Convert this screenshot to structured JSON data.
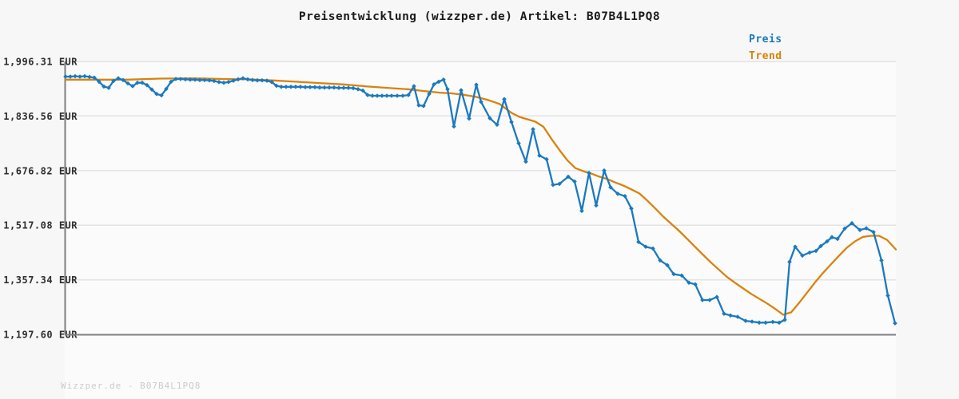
{
  "header": {
    "title": "Preisentwicklung (wizzper.de) Artikel: B07B4L1PQ8"
  },
  "footer": {
    "watermark": "Wizzper.de - B07B4L1PQ8"
  },
  "colors": {
    "background": "#f7f7f7",
    "plot_background": "#fbfbfb",
    "grid": "#e3e3e3",
    "axis": "#7f7f7f",
    "title_text": "#1b1b1b",
    "tick_text": "#2e2e2e",
    "watermark_text": "#cbcbcb",
    "price_blue": "#1b79be",
    "trend_orange": "#d9820e"
  },
  "chart_data": {
    "type": "line",
    "title": "Preisentwicklung (wizzper.de) Artikel: B07B4L1PQ8",
    "grid": true,
    "legend_position": "top-right",
    "x_axis": {
      "tick_labels": []
    },
    "y_axis": {
      "unit": "EUR",
      "tick_labels": [
        "1,996.31 EUR",
        "1,836.56 EUR",
        "1,676.82 EUR",
        "1,517.08 EUR",
        "1,357.34 EUR",
        "1,197.60 EUR"
      ],
      "tick_values": [
        1996.31,
        1836.56,
        1676.82,
        1517.08,
        1357.34,
        1197.6
      ],
      "ylim": [
        1197.6,
        1996.31
      ]
    },
    "series": [
      {
        "name": "Preis",
        "color": "#1b79be",
        "markers": true,
        "x": [
          0.001,
          0.0067,
          0.0125,
          0.0183,
          0.024,
          0.0298,
          0.0356,
          0.0413,
          0.0471,
          0.0529,
          0.0587,
          0.0644,
          0.0702,
          0.076,
          0.0817,
          0.0875,
          0.0933,
          0.099,
          0.1048,
          0.1106,
          0.1163,
          0.1221,
          0.1279,
          0.1337,
          0.1394,
          0.1452,
          0.151,
          0.1567,
          0.1625,
          0.1683,
          0.174,
          0.1798,
          0.1856,
          0.1913,
          0.1971,
          0.2029,
          0.2087,
          0.2144,
          0.2202,
          0.226,
          0.2317,
          0.2375,
          0.2433,
          0.249,
          0.2548,
          0.2606,
          0.2663,
          0.2721,
          0.2779,
          0.2837,
          0.2894,
          0.2952,
          0.301,
          0.3067,
          0.3125,
          0.3183,
          0.324,
          0.3298,
          0.3356,
          0.3413,
          0.3471,
          0.3529,
          0.3587,
          0.3644,
          0.3702,
          0.376,
          0.3817,
          0.3875,
          0.3933,
          0.4,
          0.4067,
          0.4135,
          0.4202,
          0.426,
          0.4317,
          0.4385,
          0.4442,
          0.45,
          0.4558,
          0.4606,
          0.4683,
          0.4769,
          0.4865,
          0.4952,
          0.501,
          0.5115,
          0.5202,
          0.5288,
          0.5375,
          0.5462,
          0.5548,
          0.5635,
          0.5712,
          0.5798,
          0.5875,
          0.5952,
          0.6058,
          0.6135,
          0.6221,
          0.6308,
          0.6394,
          0.649,
          0.6567,
          0.6654,
          0.674,
          0.6817,
          0.6904,
          0.699,
          0.7077,
          0.7163,
          0.725,
          0.7327,
          0.7423,
          0.751,
          0.7587,
          0.7673,
          0.776,
          0.7846,
          0.7933,
          0.801,
          0.8096,
          0.8192,
          0.8269,
          0.8356,
          0.8433,
          0.8519,
          0.8596,
          0.8663,
          0.8721,
          0.8788,
          0.8875,
          0.8962,
          0.9038,
          0.9096,
          0.9173,
          0.9231,
          0.9298,
          0.9385,
          0.9471,
          0.9567,
          0.9644,
          0.9731,
          0.9827,
          0.9904,
          0.999
        ],
        "values": [
          1952,
          1952,
          1953,
          1952,
          1953,
          1951,
          1949,
          1937,
          1923,
          1919,
          1939,
          1947,
          1942,
          1932,
          1924,
          1934,
          1934,
          1927,
          1914,
          1901,
          1897,
          1916,
          1937,
          1945,
          1945,
          1944,
          1943,
          1943,
          1942,
          1942,
          1941,
          1939,
          1936,
          1934,
          1936,
          1940,
          1944,
          1947,
          1944,
          1942,
          1941,
          1941,
          1940,
          1936,
          1925,
          1922,
          1922,
          1922,
          1922,
          1922,
          1921,
          1921,
          1921,
          1920,
          1920,
          1920,
          1920,
          1919,
          1919,
          1919,
          1918,
          1915,
          1911,
          1898,
          1896,
          1896,
          1896,
          1896,
          1896,
          1896,
          1896,
          1898,
          1924,
          1868,
          1866,
          1901,
          1929,
          1937,
          1943,
          1915,
          1806,
          1912,
          1829,
          1928,
          1878,
          1830,
          1811,
          1886,
          1819,
          1757,
          1703,
          1798,
          1721,
          1710,
          1635,
          1638,
          1659,
          1645,
          1559,
          1670,
          1575,
          1677,
          1628,
          1609,
          1602,
          1566,
          1468,
          1454,
          1449,
          1414,
          1400,
          1374,
          1370,
          1349,
          1344,
          1298,
          1298,
          1307,
          1258,
          1253,
          1249,
          1237,
          1235,
          1232,
          1232,
          1234,
          1232,
          1240,
          1410,
          1454,
          1428,
          1437,
          1442,
          1456,
          1470,
          1482,
          1477,
          1507,
          1523,
          1503,
          1508,
          1497,
          1414,
          1311,
          1230
        ]
      },
      {
        "name": "Trend",
        "color": "#d9820e",
        "markers": false,
        "x": [
          0.001,
          0.0375,
          0.076,
          0.1144,
          0.1529,
          0.1913,
          0.2202,
          0.249,
          0.2779,
          0.3067,
          0.3356,
          0.3644,
          0.3933,
          0.4125,
          0.4317,
          0.451,
          0.4654,
          0.4798,
          0.4942,
          0.5087,
          0.5231,
          0.5375,
          0.5471,
          0.5567,
          0.5663,
          0.576,
          0.5856,
          0.5952,
          0.6048,
          0.6144,
          0.624,
          0.6337,
          0.6433,
          0.6529,
          0.6625,
          0.6721,
          0.6817,
          0.6913,
          0.701,
          0.7106,
          0.7202,
          0.7298,
          0.7394,
          0.749,
          0.7587,
          0.7683,
          0.7779,
          0.7875,
          0.7971,
          0.8067,
          0.8163,
          0.826,
          0.8356,
          0.8452,
          0.8548,
          0.8644,
          0.874,
          0.8837,
          0.8933,
          0.9029,
          0.9125,
          0.9221,
          0.9317,
          0.9413,
          0.951,
          0.9606,
          0.9702,
          0.9798,
          0.9894,
          1.0
        ],
        "values": [
          1943,
          1943,
          1943,
          1946,
          1947,
          1945,
          1944,
          1941,
          1937,
          1933,
          1929,
          1923,
          1918,
          1915,
          1910,
          1905,
          1903,
          1899,
          1893,
          1884,
          1872,
          1846,
          1834,
          1827,
          1820,
          1805,
          1770,
          1737,
          1707,
          1684,
          1675,
          1668,
          1659,
          1652,
          1642,
          1633,
          1622,
          1610,
          1589,
          1566,
          1542,
          1521,
          1500,
          1477,
          1453,
          1430,
          1407,
          1386,
          1365,
          1348,
          1332,
          1316,
          1302,
          1288,
          1272,
          1255,
          1262,
          1290,
          1320,
          1350,
          1378,
          1403,
          1428,
          1452,
          1470,
          1483,
          1486,
          1486,
          1474,
          1446
        ]
      }
    ]
  }
}
